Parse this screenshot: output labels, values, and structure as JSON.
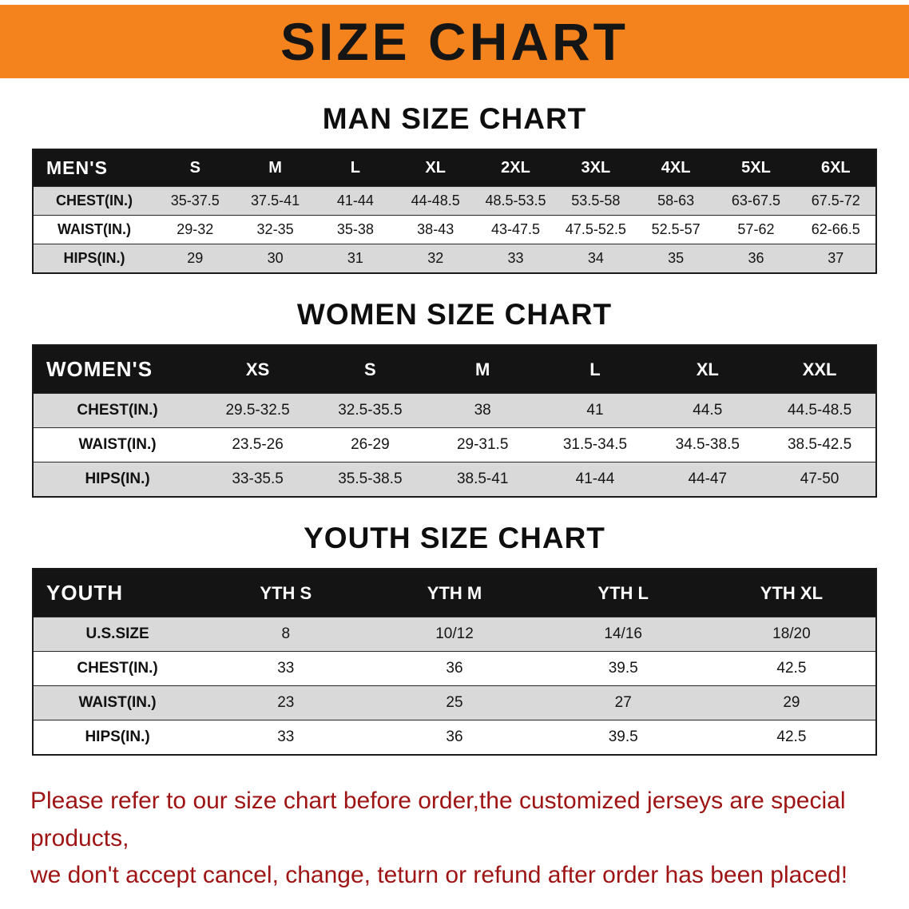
{
  "banner": {
    "title": "SIZE CHART",
    "bg_color": "#F5831D"
  },
  "colors": {
    "table_header_bg": "#141414",
    "alt_row_bg": "#D9D9D9",
    "notice_text": "#9E1414"
  },
  "sections": [
    {
      "heading": "MAN SIZE CHART",
      "table": {
        "header": [
          "MEN'S",
          "S",
          "M",
          "L",
          "XL",
          "2XL",
          "3XL",
          "4XL",
          "5XL",
          "6XL"
        ],
        "rows": [
          {
            "label": "CHEST(IN.)",
            "values": [
              "35-37.5",
              "37.5-41",
              "41-44",
              "44-48.5",
              "48.5-53.5",
              "53.5-58",
              "58-63",
              "63-67.5",
              "67.5-72"
            ]
          },
          {
            "label": "WAIST(IN.)",
            "values": [
              "29-32",
              "32-35",
              "35-38",
              "38-43",
              "43-47.5",
              "47.5-52.5",
              "52.5-57",
              "57-62",
              "62-66.5"
            ]
          },
          {
            "label": "HIPS(IN.)",
            "values": [
              "29",
              "30",
              "31",
              "32",
              "33",
              "34",
              "35",
              "36",
              "37"
            ]
          }
        ]
      }
    },
    {
      "heading": "WOMEN SIZE CHART",
      "table": {
        "header": [
          "WOMEN'S",
          "XS",
          "S",
          "M",
          "L",
          "XL",
          "XXL"
        ],
        "rows": [
          {
            "label": "CHEST(IN.)",
            "values": [
              "29.5-32.5",
              "32.5-35.5",
              "38",
              "41",
              "44.5",
              "44.5-48.5"
            ]
          },
          {
            "label": "WAIST(IN.)",
            "values": [
              "23.5-26",
              "26-29",
              "29-31.5",
              "31.5-34.5",
              "34.5-38.5",
              "38.5-42.5"
            ]
          },
          {
            "label": "HIPS(IN.)",
            "values": [
              "33-35.5",
              "35.5-38.5",
              "38.5-41",
              "41-44",
              "44-47",
              "47-50"
            ]
          }
        ]
      }
    },
    {
      "heading": "YOUTH SIZE CHART",
      "table": {
        "header": [
          "YOUTH",
          "YTH S",
          "YTH M",
          "YTH L",
          "YTH XL"
        ],
        "rows": [
          {
            "label": "U.S.SIZE",
            "values": [
              "8",
              "10/12",
              "14/16",
              "18/20"
            ]
          },
          {
            "label": "CHEST(IN.)",
            "values": [
              "33",
              "36",
              "39.5",
              "42.5"
            ]
          },
          {
            "label": "WAIST(IN.)",
            "values": [
              "23",
              "25",
              "27",
              "29"
            ]
          },
          {
            "label": "HIPS(IN.)",
            "values": [
              "33",
              "36",
              "39.5",
              "42.5"
            ]
          }
        ]
      }
    }
  ],
  "footer": {
    "line1": "Please refer to our size chart before order,the customized jerseys are special products,",
    "line2": "we don't accept cancel, change, teturn or refund after order has been placed!"
  }
}
